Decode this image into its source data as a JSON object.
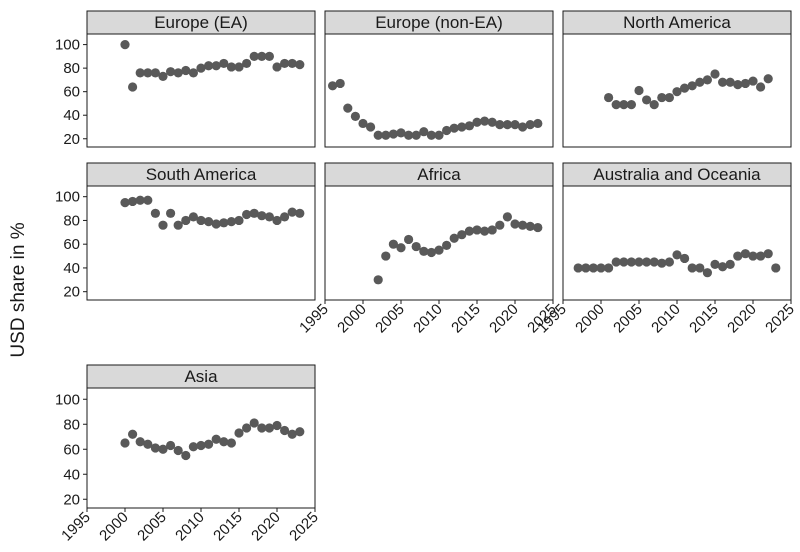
{
  "chart_data": {
    "type": "scatter",
    "title": "",
    "xlabel": "",
    "ylabel": "USD share in %",
    "xlim": [
      1995,
      2025
    ],
    "ylim": [
      13,
      109
    ],
    "xticks": [
      1995,
      2000,
      2005,
      2010,
      2015,
      2020,
      2025
    ],
    "yticks": [
      20,
      40,
      60,
      80,
      100
    ],
    "point_color": "#595959",
    "strip_color": "#d9d9d9",
    "grid": false,
    "facets": [
      {
        "name": "Europe (EA)",
        "x": [
          2000,
          2001,
          2002,
          2003,
          2004,
          2005,
          2006,
          2007,
          2008,
          2009,
          2010,
          2011,
          2012,
          2013,
          2014,
          2015,
          2016,
          2017,
          2018,
          2019,
          2020,
          2021,
          2022,
          2023
        ],
        "y": [
          100,
          64,
          76,
          76,
          76,
          73,
          77,
          76,
          78,
          76,
          80,
          82,
          82,
          84,
          81,
          81,
          84,
          90,
          90,
          90,
          81,
          84,
          84,
          83
        ]
      },
      {
        "name": "Europe (non-EA)",
        "x": [
          1996,
          1997,
          1998,
          1999,
          2000,
          2001,
          2002,
          2003,
          2004,
          2005,
          2006,
          2007,
          2008,
          2009,
          2010,
          2011,
          2012,
          2013,
          2014,
          2015,
          2016,
          2017,
          2018,
          2019,
          2020,
          2021,
          2022,
          2023
        ],
        "y": [
          65,
          67,
          46,
          39,
          33,
          30,
          23,
          23,
          24,
          25,
          23,
          23,
          26,
          23,
          23,
          27,
          29,
          30,
          31,
          34,
          35,
          34,
          32,
          32,
          32,
          30,
          32,
          33
        ]
      },
      {
        "name": "North America",
        "x": [
          2001,
          2002,
          2003,
          2004,
          2005,
          2006,
          2007,
          2008,
          2009,
          2010,
          2011,
          2012,
          2013,
          2014,
          2015,
          2016,
          2017,
          2018,
          2019,
          2020,
          2021,
          2022
        ],
        "y": [
          55,
          49,
          49,
          49,
          61,
          53,
          49,
          55,
          55,
          60,
          63,
          65,
          68,
          70,
          75,
          68,
          68,
          66,
          67,
          69,
          64,
          71
        ]
      },
      {
        "name": "South America",
        "x": [
          2000,
          2001,
          2002,
          2003,
          2004,
          2005,
          2006,
          2007,
          2008,
          2009,
          2010,
          2011,
          2012,
          2013,
          2014,
          2015,
          2016,
          2017,
          2018,
          2019,
          2020,
          2021,
          2022,
          2023
        ],
        "y": [
          95,
          96,
          97,
          97,
          86,
          76,
          86,
          76,
          80,
          83,
          80,
          79,
          77,
          78,
          79,
          80,
          85,
          86,
          84,
          83,
          80,
          83,
          87,
          86
        ]
      },
      {
        "name": "Africa",
        "x": [
          2002,
          2003,
          2004,
          2005,
          2006,
          2007,
          2008,
          2009,
          2010,
          2011,
          2012,
          2013,
          2014,
          2015,
          2016,
          2017,
          2018,
          2019,
          2020,
          2021,
          2022,
          2023
        ],
        "y": [
          30,
          50,
          60,
          57,
          64,
          58,
          54,
          53,
          55,
          59,
          65,
          68,
          71,
          72,
          71,
          72,
          76,
          83,
          77,
          76,
          75,
          74
        ]
      },
      {
        "name": "Australia and Oceania",
        "x": [
          1997,
          1998,
          1999,
          2000,
          2001,
          2002,
          2003,
          2004,
          2005,
          2006,
          2007,
          2008,
          2009,
          2010,
          2011,
          2012,
          2013,
          2014,
          2015,
          2016,
          2017,
          2018,
          2019,
          2020,
          2021,
          2022,
          2023
        ],
        "y": [
          40,
          40,
          40,
          40,
          40,
          45,
          45,
          45,
          45,
          45,
          45,
          44,
          45,
          51,
          48,
          40,
          40,
          36,
          43,
          41,
          43,
          50,
          52,
          50,
          50,
          52,
          40
        ]
      },
      {
        "name": "Asia",
        "x": [
          2000,
          2001,
          2002,
          2003,
          2004,
          2005,
          2006,
          2007,
          2008,
          2009,
          2010,
          2011,
          2012,
          2013,
          2014,
          2015,
          2016,
          2017,
          2018,
          2019,
          2020,
          2021,
          2022,
          2023
        ],
        "y": [
          65,
          72,
          66,
          64,
          61,
          60,
          63,
          59,
          55,
          62,
          63,
          64,
          68,
          66,
          65,
          73,
          77,
          81,
          77,
          77,
          79,
          75,
          72,
          74
        ]
      }
    ]
  }
}
